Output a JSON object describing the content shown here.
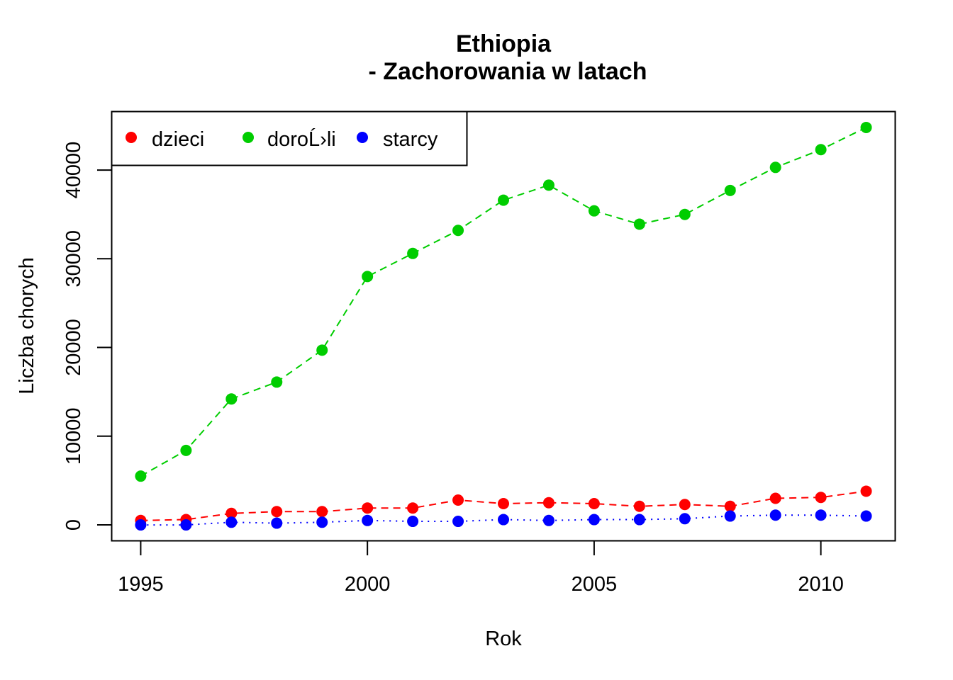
{
  "chart_data": {
    "type": "line",
    "title": "Ethiopia",
    "subtitle": "- Zachorowania w latach",
    "xlabel": "Rok",
    "ylabel": "Liczba chorych",
    "x": [
      1995,
      1996,
      1997,
      1998,
      1999,
      2000,
      2001,
      2002,
      2003,
      2004,
      2005,
      2006,
      2007,
      2008,
      2009,
      2010,
      2011
    ],
    "xticks": [
      "1995",
      "2000",
      "2005",
      "2010"
    ],
    "yticks": [
      "0",
      "10000",
      "20000",
      "30000",
      "40000"
    ],
    "xlim": [
      1994.36,
      2011.64
    ],
    "ylim": [
      -1792,
      46592
    ],
    "legend_position": "top-left",
    "grid": false,
    "series": [
      {
        "name": "dzieci",
        "color": "#FF0000",
        "line_style": "dashed",
        "values": [
          500,
          600,
          1300,
          1500,
          1500,
          1900,
          1900,
          2800,
          2400,
          2500,
          2400,
          2100,
          2300,
          2100,
          3000,
          3100,
          3800
        ]
      },
      {
        "name": "doroĹ›li",
        "color": "#00CD00",
        "line_style": "dashed",
        "values": [
          5500,
          8400,
          14200,
          16100,
          19700,
          28000,
          30600,
          33200,
          36600,
          38300,
          35400,
          33900,
          35000,
          37700,
          40300,
          42300,
          44800
        ]
      },
      {
        "name": "starcy",
        "color": "#0000FF",
        "line_style": "dotted",
        "values": [
          0,
          0,
          300,
          200,
          300,
          500,
          400,
          400,
          600,
          500,
          600,
          600,
          700,
          1000,
          1100,
          1100,
          1000
        ]
      }
    ]
  }
}
